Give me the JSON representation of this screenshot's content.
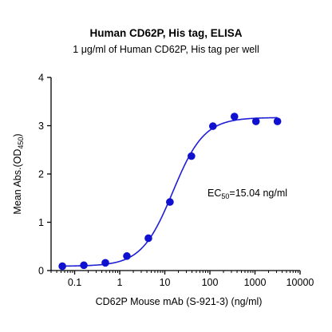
{
  "chart_data": {
    "type": "scatter",
    "title": "Human CD62P, His tag, ELISA",
    "subtitle": "1 μg/ml of Human CD62P, His tag per well",
    "xlabel": "CD62P Mouse mAb (S-921-3) (ng/ml)",
    "ylabel_main": "Mean Abs.(OD",
    "ylabel_sub": "450",
    "ylabel_close": ")",
    "x_scale": "log",
    "xlim": [
      0.03,
      10000
    ],
    "ylim": [
      0,
      4
    ],
    "x_ticks": [
      0.1,
      1,
      10,
      100,
      1000,
      10000
    ],
    "x_tick_labels": [
      "0.1",
      "1",
      "10",
      "100",
      "1000",
      "10000"
    ],
    "y_ticks": [
      0,
      1,
      2,
      3,
      4
    ],
    "y_tick_labels": [
      "0",
      "1",
      "2",
      "3",
      "4"
    ],
    "grid": false,
    "series": [
      {
        "x": [
          0.0533,
          0.16,
          0.48,
          1.44,
          4.32,
          12.96,
          38.9,
          116.6,
          350,
          1050,
          3149
        ],
        "y": [
          0.09,
          0.11,
          0.16,
          0.3,
          0.67,
          1.42,
          2.37,
          2.99,
          3.19,
          3.09,
          3.09
        ],
        "color": "#1010d0"
      }
    ],
    "fit_curve": {
      "model": "4PL",
      "bottom": 0.09,
      "top": 3.17,
      "ec50": 15.04,
      "hill": 1.25,
      "color": "#1f1fd6"
    },
    "annotation": {
      "prefix": "EC",
      "sub": "50",
      "suffix": "=15.04 ng/ml"
    }
  }
}
